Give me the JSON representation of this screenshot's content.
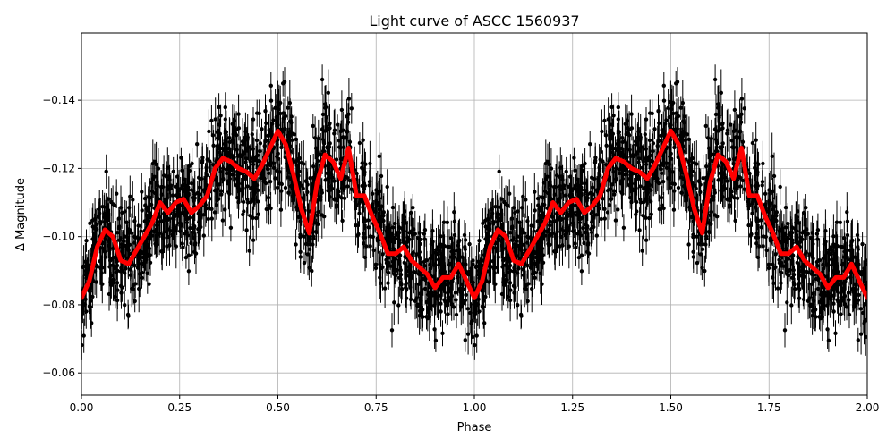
{
  "chart_data": {
    "type": "scatter",
    "title": "Light curve of ASCC 1560937",
    "xlabel": "Phase",
    "ylabel": "Δ Magnitude",
    "xlim": [
      0,
      2.0
    ],
    "ylim": [
      -0.0535,
      -0.1597
    ],
    "y_inverted": true,
    "grid": true,
    "xticks": [
      "0.00",
      "0.25",
      "0.50",
      "0.75",
      "1.00",
      "1.25",
      "1.50",
      "1.75",
      "2.00"
    ],
    "xtick_values": [
      0,
      0.25,
      0.5,
      0.75,
      1.0,
      1.25,
      1.5,
      1.75,
      2.0
    ],
    "yticks": [
      "−0.14",
      "−0.12",
      "−0.10",
      "−0.08",
      "−0.06"
    ],
    "ytick_values": [
      -0.14,
      -0.12,
      -0.1,
      -0.08,
      -0.06
    ],
    "points_color": "#000000",
    "series": [
      {
        "type": "line",
        "color": "#ff0000",
        "x": [
          0.0,
          0.02,
          0.04,
          0.06,
          0.08,
          0.1,
          0.12,
          0.14,
          0.16,
          0.18,
          0.2,
          0.22,
          0.24,
          0.26,
          0.28,
          0.3,
          0.32,
          0.34,
          0.36,
          0.38,
          0.4,
          0.42,
          0.44,
          0.46,
          0.48,
          0.5,
          0.52,
          0.54,
          0.56,
          0.58,
          0.6,
          0.62,
          0.64,
          0.66,
          0.68,
          0.7,
          0.72,
          0.74,
          0.76,
          0.78,
          0.8,
          0.82,
          0.84,
          0.86,
          0.88,
          0.9,
          0.92,
          0.94,
          0.96,
          0.98,
          1.0,
          1.02,
          1.04,
          1.06,
          1.08,
          1.1,
          1.12,
          1.14,
          1.16,
          1.18,
          1.2,
          1.22,
          1.24,
          1.26,
          1.28,
          1.3,
          1.32,
          1.34,
          1.36,
          1.38,
          1.4,
          1.42,
          1.44,
          1.46,
          1.48,
          1.5,
          1.52,
          1.54,
          1.56,
          1.58,
          1.6,
          1.62,
          1.64,
          1.66,
          1.68,
          1.7,
          1.72,
          1.74,
          1.76,
          1.78,
          1.8,
          1.82,
          1.84,
          1.86,
          1.88,
          1.9,
          1.92,
          1.94,
          1.96,
          1.98,
          2.0
        ],
        "y": [
          -0.082,
          -0.087,
          -0.097,
          -0.102,
          -0.1,
          -0.093,
          -0.092,
          -0.096,
          -0.1,
          -0.104,
          -0.11,
          -0.107,
          -0.11,
          -0.111,
          -0.107,
          -0.109,
          -0.112,
          -0.12,
          -0.123,
          -0.122,
          -0.12,
          -0.119,
          -0.117,
          -0.121,
          -0.126,
          -0.131,
          -0.127,
          -0.118,
          -0.108,
          -0.101,
          -0.116,
          -0.124,
          -0.122,
          -0.117,
          -0.126,
          -0.112,
          -0.112,
          -0.106,
          -0.101,
          -0.095,
          -0.095,
          -0.097,
          -0.093,
          -0.091,
          -0.089,
          -0.085,
          -0.088,
          -0.088,
          -0.092,
          -0.087,
          -0.082,
          -0.087,
          -0.097,
          -0.102,
          -0.1,
          -0.093,
          -0.092,
          -0.096,
          -0.1,
          -0.104,
          -0.11,
          -0.107,
          -0.11,
          -0.111,
          -0.107,
          -0.109,
          -0.112,
          -0.12,
          -0.123,
          -0.122,
          -0.12,
          -0.119,
          -0.117,
          -0.121,
          -0.126,
          -0.131,
          -0.127,
          -0.118,
          -0.108,
          -0.101,
          -0.116,
          -0.124,
          -0.122,
          -0.117,
          -0.126,
          -0.112,
          -0.112,
          -0.106,
          -0.101,
          -0.095,
          -0.095,
          -0.097,
          -0.093,
          -0.091,
          -0.089,
          -0.085,
          -0.088,
          -0.088,
          -0.092,
          -0.087,
          -0.082
        ]
      }
    ]
  }
}
